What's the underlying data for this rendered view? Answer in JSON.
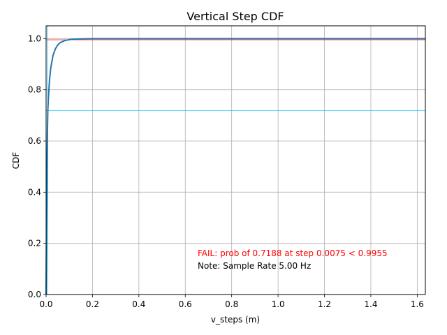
{
  "chart_data": {
    "type": "line",
    "title": "Vertical Step CDF",
    "xlabel": "v_steps (m)",
    "ylabel": "CDF",
    "xlim": [
      0,
      1.635
    ],
    "ylim": [
      0,
      1.05
    ],
    "grid": true,
    "x_ticks": [
      0,
      0.2,
      0.4,
      0.6,
      0.8,
      1.0,
      1.2,
      1.4,
      1.6
    ],
    "x_tick_labels": [
      "0.0",
      "0.2",
      "0.4",
      "0.6",
      "0.8",
      "1.0",
      "1.2",
      "1.4",
      "1.6"
    ],
    "y_ticks": [
      0,
      0.2,
      0.4,
      0.6,
      0.8,
      1.0
    ],
    "y_tick_labels": [
      "0.0",
      "0.2",
      "0.4",
      "0.6",
      "0.8",
      "1.0"
    ],
    "series": [
      {
        "color": "#1f77b4",
        "x": [
          0,
          0.002,
          0.004,
          0.006,
          0.0075,
          0.01,
          0.015,
          0.02,
          0.03,
          0.04,
          0.05,
          0.06,
          0.08,
          0.1,
          0.12,
          0.15,
          0.2,
          0.3,
          0.5,
          1.0,
          1.635
        ],
        "y": [
          0,
          0.28,
          0.5,
          0.65,
          0.7188,
          0.77,
          0.84,
          0.885,
          0.935,
          0.96,
          0.975,
          0.984,
          0.992,
          0.996,
          0.998,
          0.999,
          1.0,
          1.0,
          1.0,
          1.0,
          1.0
        ]
      }
    ],
    "reference_lines": [
      {
        "orientation": "horizontal",
        "value": 0.9955,
        "color": "#ff0000"
      },
      {
        "orientation": "horizontal",
        "value": 0.7188,
        "color": "#00bfff"
      },
      {
        "orientation": "vertical",
        "value": 0.0075,
        "color": "#00bfff"
      }
    ],
    "annotations": [
      {
        "text": "FAIL: prob of 0.7188 at step 0.0075 < 0.9955",
        "color": "#ff0000"
      },
      {
        "text": "Note: Sample Rate 5.00 Hz",
        "color": "#000000"
      }
    ]
  }
}
